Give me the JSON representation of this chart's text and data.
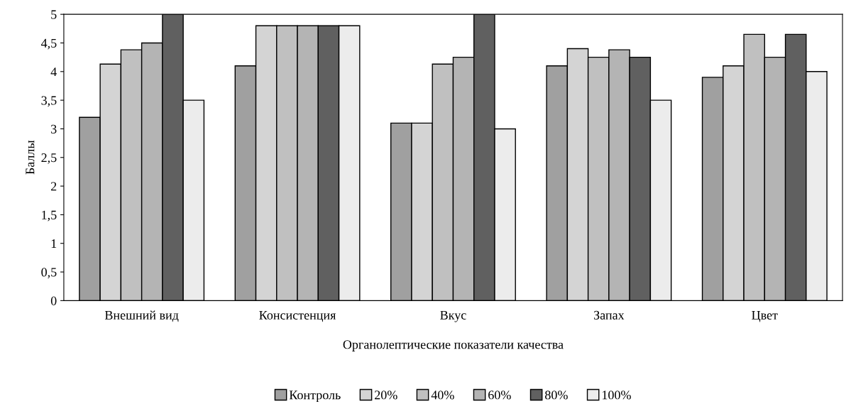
{
  "chart_data": {
    "type": "bar",
    "xlabel": "Органолептические показатели качества",
    "ylabel": "Баллы",
    "categories": [
      "Внешний вид",
      "Консистенция",
      "Вкус",
      "Запах",
      "Цвет"
    ],
    "series": [
      {
        "name": "Контроль",
        "color": "#a0a0a0",
        "values": [
          3.2,
          4.1,
          3.1,
          4.1,
          3.9
        ]
      },
      {
        "name": "20%",
        "color": "#d4d4d4",
        "values": [
          4.13,
          4.8,
          3.1,
          4.4,
          4.1
        ]
      },
      {
        "name": "40%",
        "color": "#c0c0c0",
        "values": [
          4.38,
          4.8,
          4.13,
          4.25,
          4.65
        ]
      },
      {
        "name": "60%",
        "color": "#b4b4b4",
        "values": [
          4.5,
          4.8,
          4.25,
          4.38,
          4.25
        ]
      },
      {
        "name": "80%",
        "color": "#606060",
        "values": [
          5,
          4.8,
          5,
          4.25,
          4.65
        ]
      },
      {
        "name": "100%",
        "color": "#ececec",
        "values": [
          3.5,
          4.8,
          3.0,
          3.5,
          4.0
        ]
      }
    ],
    "ylim": [
      0,
      5
    ],
    "yticks": [
      0,
      {
        "value": 0.5,
        "label": "0,5"
      },
      1,
      {
        "value": 1.5,
        "label": "1,5"
      },
      2,
      {
        "value": 2.5,
        "label": "2,5"
      },
      3,
      {
        "value": 3.5,
        "label": "3,5"
      },
      4,
      {
        "value": 4.5,
        "label": "4,5"
      },
      5
    ],
    "grid": false,
    "legend": "bottom"
  }
}
